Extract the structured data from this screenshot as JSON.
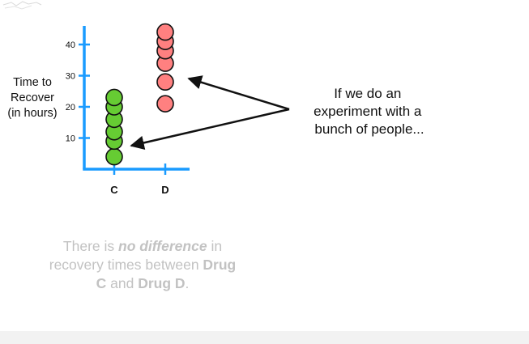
{
  "chart_data": {
    "type": "scatter",
    "categories": [
      "C",
      "D"
    ],
    "y_ticks": [
      10,
      20,
      30,
      40
    ],
    "ylim": [
      0,
      45
    ],
    "ylabel_lines": [
      "Time to",
      "Recover",
      "(in hours)"
    ],
    "series": [
      {
        "category": "C",
        "color": "#66cc33",
        "values": [
          4,
          9,
          12,
          16,
          20,
          23
        ]
      },
      {
        "category": "D",
        "color": "#ff8080",
        "values": [
          21,
          28,
          34,
          38,
          41,
          44
        ]
      }
    ],
    "axis_color": "#1a9bff",
    "grid": false
  },
  "callout": {
    "lines": [
      "If we do an",
      "experiment with a",
      "bunch of people..."
    ]
  },
  "hypothesis": {
    "part1": "There is ",
    "part2": "no difference",
    "part3": " in recovery times between ",
    "part4": "Drug C",
    "part5": " and ",
    "part6": "Drug D",
    "part7": "."
  }
}
